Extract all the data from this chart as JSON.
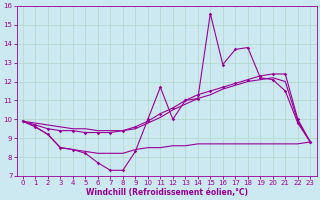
{
  "xlabel": "Windchill (Refroidissement éolien,°C)",
  "background_color": "#cce8f0",
  "grid_color": "#b0d8c8",
  "line_color": "#990099",
  "x": [
    0,
    1,
    2,
    3,
    4,
    5,
    6,
    7,
    8,
    9,
    10,
    11,
    12,
    13,
    14,
    15,
    16,
    17,
    18,
    19,
    20,
    21,
    22,
    23
  ],
  "series1": [
    9.9,
    9.6,
    9.2,
    8.5,
    8.4,
    8.2,
    7.7,
    7.3,
    7.3,
    8.3,
    10.0,
    11.7,
    10.0,
    11.0,
    11.1,
    15.6,
    12.9,
    13.7,
    13.8,
    12.2,
    12.1,
    11.5,
    9.8,
    8.8
  ],
  "series2": [
    9.9,
    9.7,
    9.5,
    9.4,
    9.4,
    9.3,
    9.3,
    9.3,
    9.4,
    9.6,
    9.9,
    10.3,
    10.6,
    11.0,
    11.3,
    11.5,
    11.7,
    11.9,
    12.1,
    12.3,
    12.4,
    12.4,
    10.0,
    8.8
  ],
  "series3": [
    9.9,
    9.8,
    9.7,
    9.6,
    9.5,
    9.5,
    9.4,
    9.4,
    9.4,
    9.5,
    9.8,
    10.1,
    10.5,
    10.8,
    11.1,
    11.3,
    11.6,
    11.8,
    12.0,
    12.1,
    12.2,
    12.0,
    9.9,
    8.8
  ],
  "series4": [
    9.9,
    9.6,
    9.2,
    8.5,
    8.4,
    8.3,
    8.2,
    8.2,
    8.2,
    8.4,
    8.5,
    8.5,
    8.6,
    8.6,
    8.7,
    8.7,
    8.7,
    8.7,
    8.7,
    8.7,
    8.7,
    8.7,
    8.7,
    8.8
  ],
  "ylim": [
    7,
    16
  ],
  "xlim": [
    -0.5,
    23.5
  ],
  "yticks": [
    7,
    8,
    9,
    10,
    11,
    12,
    13,
    14,
    15,
    16
  ],
  "xticks": [
    0,
    1,
    2,
    3,
    4,
    5,
    6,
    7,
    8,
    9,
    10,
    11,
    12,
    13,
    14,
    15,
    16,
    17,
    18,
    19,
    20,
    21,
    22,
    23
  ],
  "tick_fontsize": 5.0,
  "xlabel_fontsize": 5.5,
  "marker_size": 1.8,
  "line_width": 0.8
}
